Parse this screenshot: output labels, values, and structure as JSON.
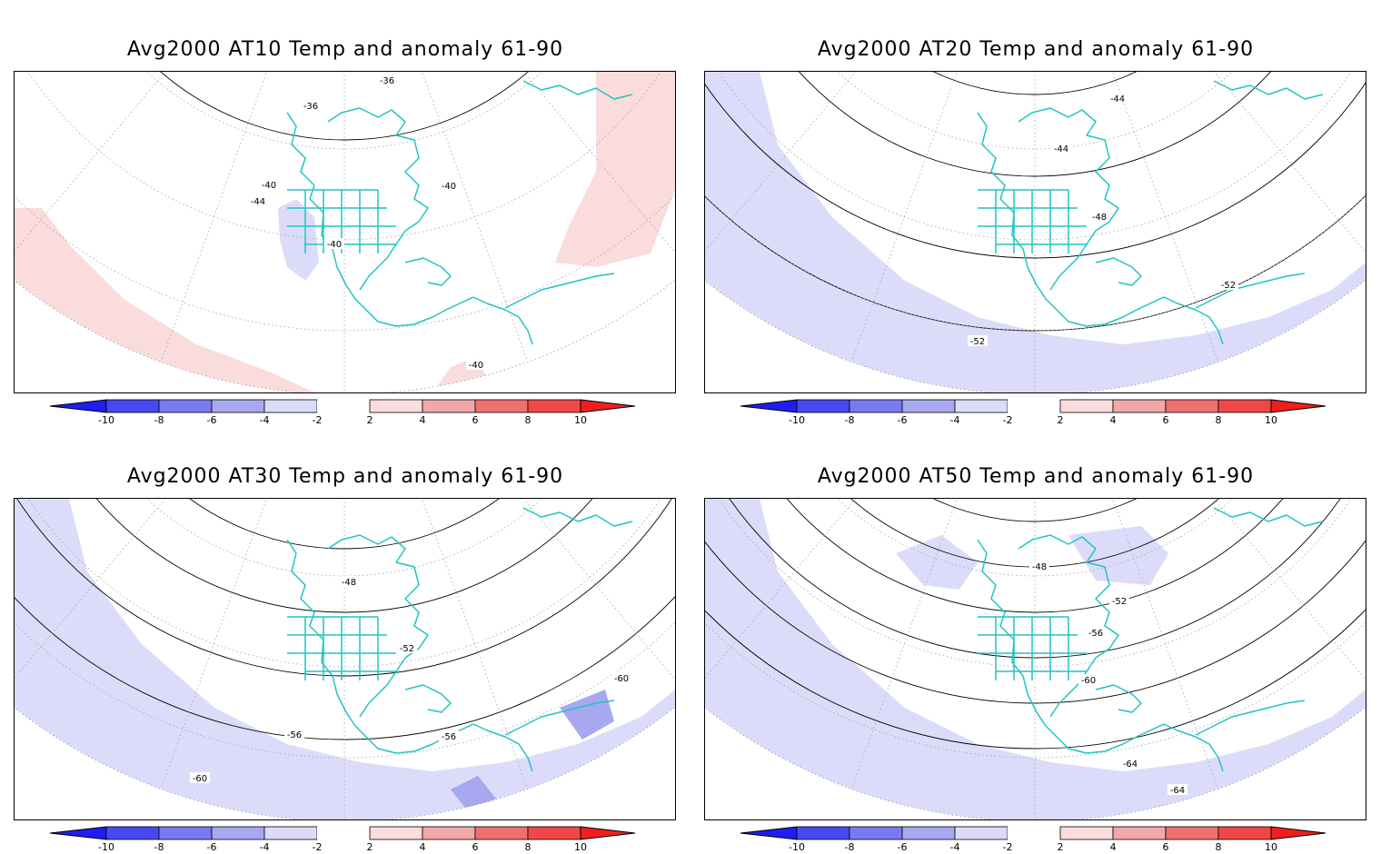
{
  "panels": [
    {
      "title": "Avg2000 AT10 Temp and anomaly 61-90",
      "anomaly": "warm-band",
      "contour_labels": [
        "-36",
        "-36",
        "-40",
        "-40",
        "-44",
        "-40",
        "-40"
      ]
    },
    {
      "title": "Avg2000 AT20 Temp and anomaly 61-90",
      "anomaly": "cool-band",
      "contour_labels": [
        "-44",
        "-44",
        "-48",
        "-52",
        "-52"
      ]
    },
    {
      "title": "Avg2000 AT30 Temp and anomaly 61-90",
      "anomaly": "cool-band",
      "contour_labels": [
        "-48",
        "-52",
        "-56",
        "-56",
        "-60",
        "-60"
      ]
    },
    {
      "title": "Avg2000 AT50 Temp and anomaly 61-90",
      "anomaly": "cool-band",
      "contour_labels": [
        "-48",
        "-52",
        "-56",
        "-60",
        "-64",
        "-64"
      ]
    }
  ],
  "colorbar": {
    "ticks": [
      "-10",
      "-8",
      "-6",
      "-4",
      "-2",
      "2",
      "4",
      "6",
      "8",
      "10"
    ],
    "colors": [
      "#1e1ef0",
      "#4848f0",
      "#7a7af0",
      "#a8a8f0",
      "#dcdcfa",
      "#ffffff",
      "#fadcdc",
      "#f0a8a8",
      "#f07070",
      "#f04848",
      "#f01e1e"
    ]
  },
  "colors": {
    "coastline": "#20c4c4",
    "warm_anomaly": "#fadcdc",
    "cool_anomaly": "#dcdcfa",
    "strong_cool": "#a8a8f0"
  }
}
